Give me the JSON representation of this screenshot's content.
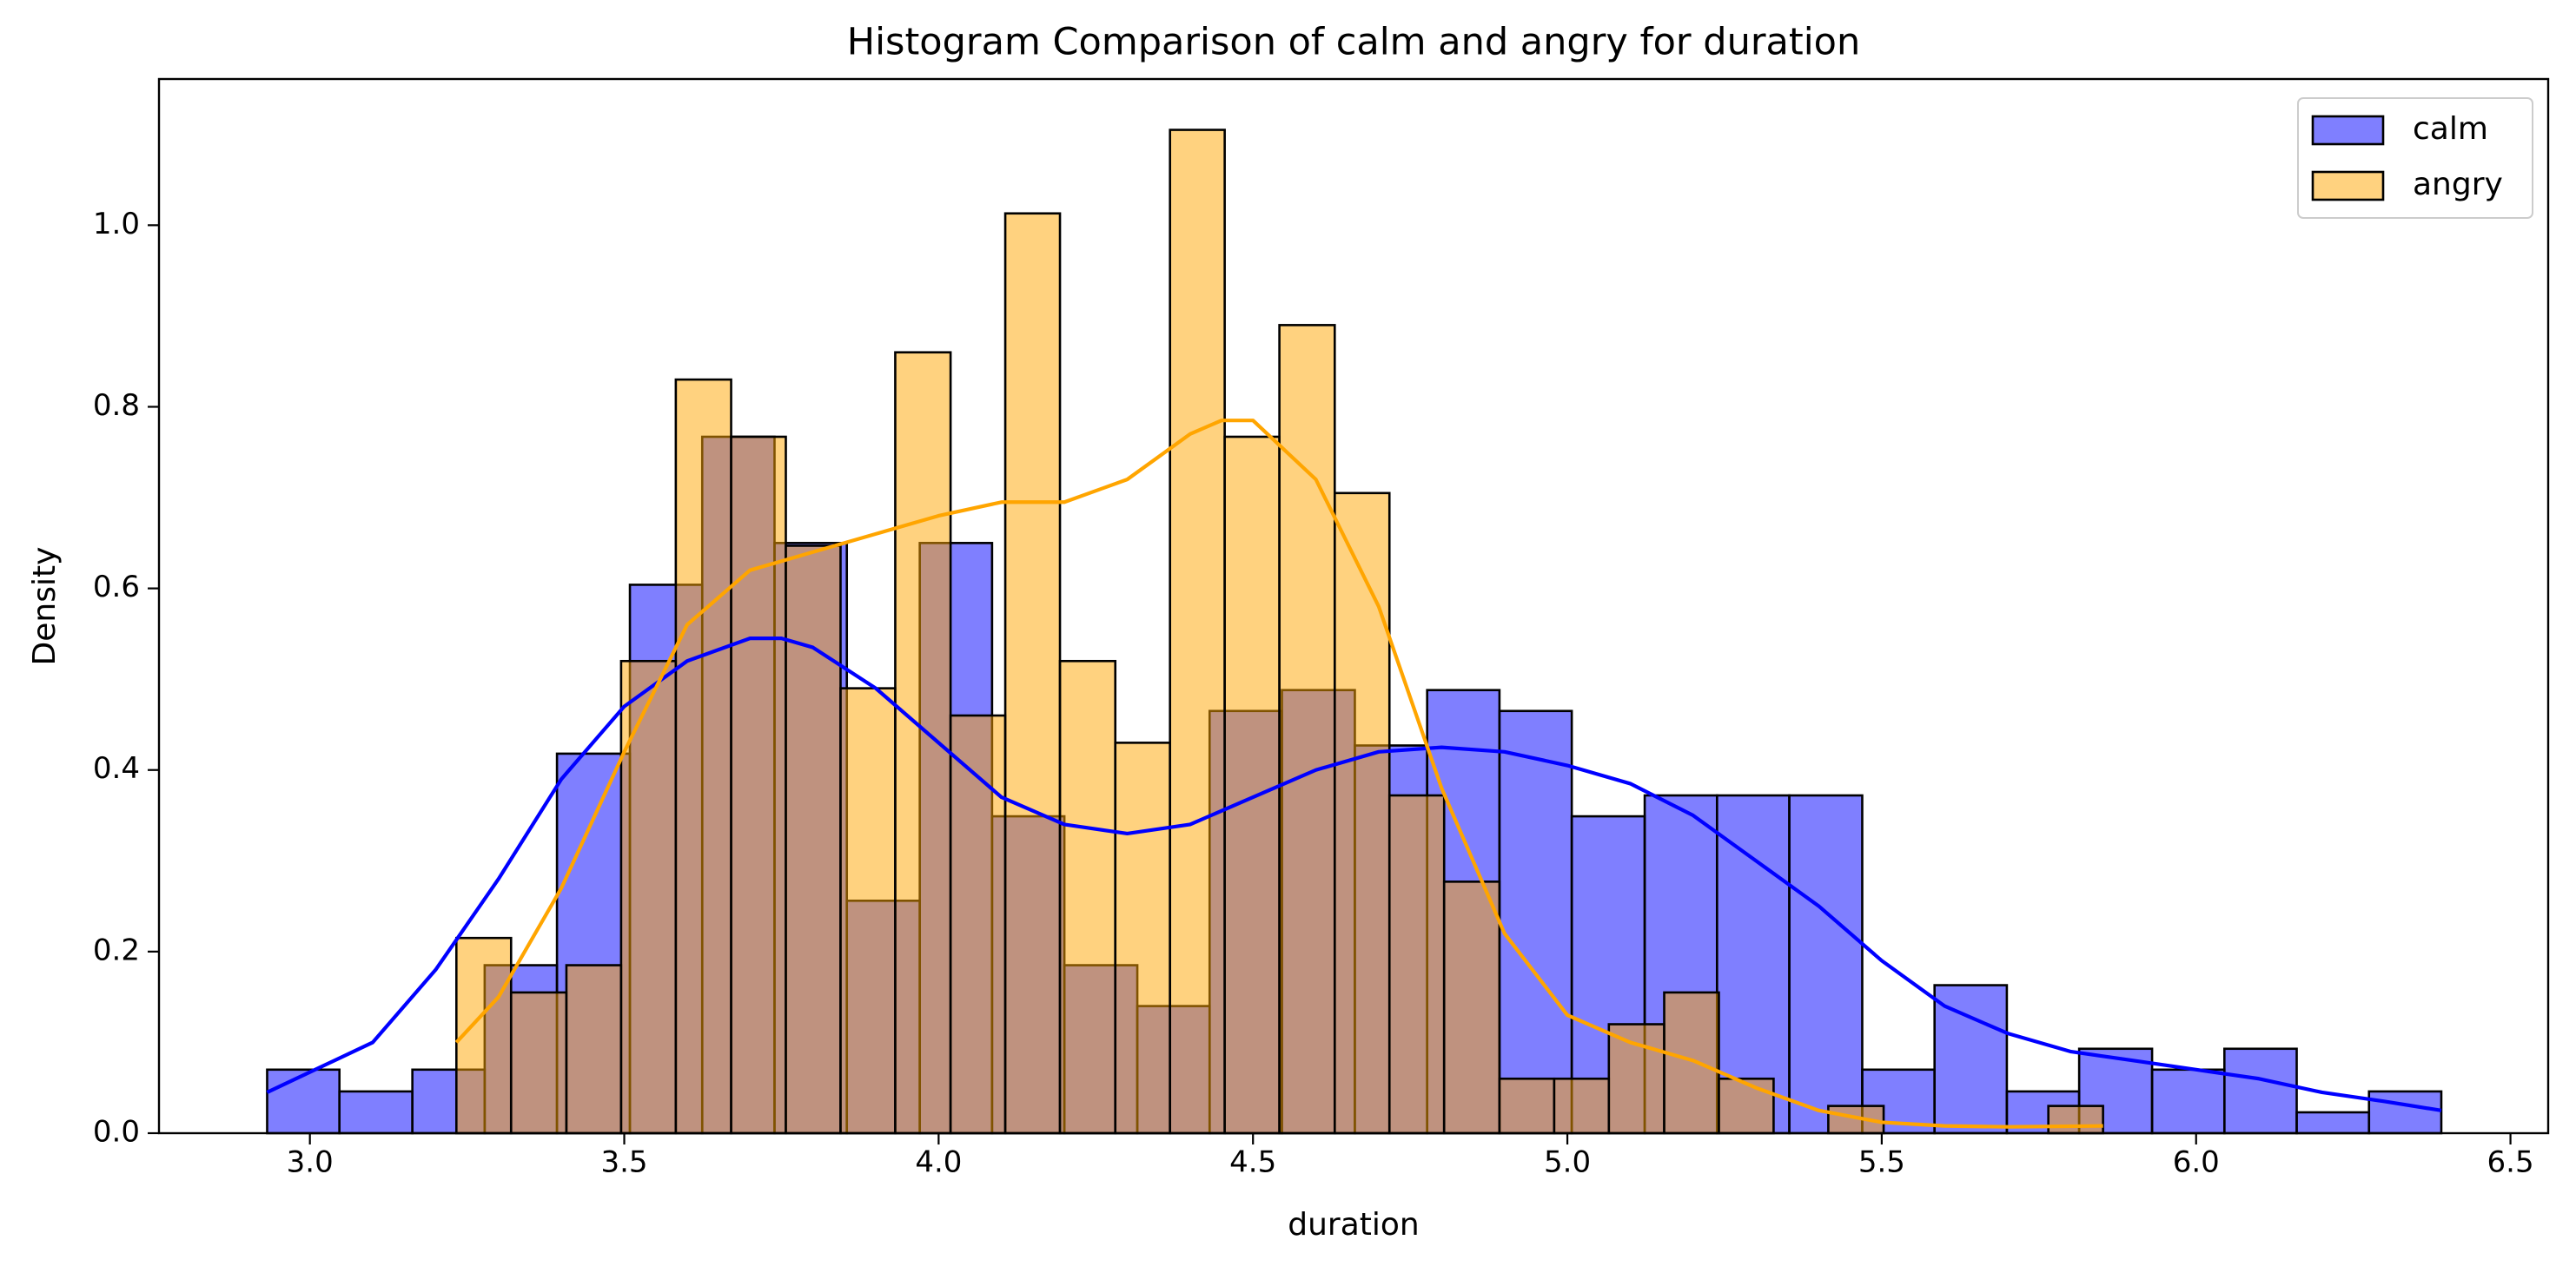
{
  "chart_data": {
    "type": "histogram",
    "title": "Histogram Comparison of calm and angry for duration",
    "x_label": "duration",
    "y_label": "Density",
    "xlim": [
      2.76,
      6.56
    ],
    "ylim": [
      0,
      1.161
    ],
    "xticks": [
      {
        "value": 3,
        "label": "3.0"
      },
      {
        "value": 3.5,
        "label": "3.5"
      },
      {
        "value": 4,
        "label": "4.0"
      },
      {
        "value": 4.5,
        "label": "4.5"
      },
      {
        "value": 5,
        "label": "5.0"
      },
      {
        "value": 5.5,
        "label": "5.5"
      },
      {
        "value": 6,
        "label": "6.0"
      },
      {
        "value": 6.5,
        "label": "6.5"
      }
    ],
    "yticks": [
      {
        "value": 0,
        "label": "0.0"
      },
      {
        "value": 0.2,
        "label": "0.2"
      },
      {
        "value": 0.4,
        "label": "0.4"
      },
      {
        "value": 0.6,
        "label": "0.6"
      },
      {
        "value": 0.8,
        "label": "0.8"
      },
      {
        "value": 1,
        "label": "1.0"
      }
    ],
    "grid": false,
    "legend": "upper right",
    "series": [
      {
        "name": "calm",
        "color": "#0000ff",
        "bins": [
          2.932,
          3.047,
          3.163,
          3.278,
          3.393,
          3.509,
          3.624,
          3.739,
          3.854,
          3.97,
          4.085,
          4.2,
          4.316,
          4.431,
          4.546,
          4.662,
          4.777,
          4.892,
          5.007,
          5.123,
          5.238,
          5.353,
          5.469,
          5.584,
          5.699,
          5.814,
          5.93,
          6.045,
          6.16,
          6.275,
          6.39
        ],
        "values": [
          0.07,
          0.046,
          0.07,
          0.185,
          0.418,
          0.604,
          0.767,
          0.65,
          0.256,
          0.65,
          0.349,
          0.185,
          0.14,
          0.465,
          0.488,
          0.427,
          0.488,
          0.465,
          0.349,
          0.372,
          0.372,
          0.372,
          0.07,
          0.163,
          0.046,
          0.093,
          0.07,
          0.093,
          0.023,
          0.046
        ],
        "kde": {
          "x": [
            2.932,
            3.1,
            3.2,
            3.3,
            3.4,
            3.5,
            3.6,
            3.7,
            3.75,
            3.8,
            3.9,
            4.0,
            4.1,
            4.2,
            4.3,
            4.4,
            4.5,
            4.6,
            4.7,
            4.8,
            4.9,
            5.0,
            5.1,
            5.2,
            5.3,
            5.4,
            5.5,
            5.6,
            5.7,
            5.8,
            5.9,
            6.0,
            6.1,
            6.2,
            6.3,
            6.39
          ],
          "y": [
            0.045,
            0.1,
            0.18,
            0.28,
            0.39,
            0.47,
            0.52,
            0.545,
            0.545,
            0.535,
            0.49,
            0.43,
            0.37,
            0.34,
            0.33,
            0.34,
            0.37,
            0.4,
            0.42,
            0.425,
            0.42,
            0.405,
            0.385,
            0.35,
            0.3,
            0.25,
            0.19,
            0.14,
            0.11,
            0.09,
            0.08,
            0.07,
            0.06,
            0.045,
            0.035,
            0.025
          ]
        }
      },
      {
        "name": "angry",
        "color": "#ffa500",
        "bins": [
          3.233,
          3.32,
          3.408,
          3.495,
          3.582,
          3.67,
          3.757,
          3.844,
          3.931,
          4.019,
          4.106,
          4.193,
          4.281,
          4.368,
          4.455,
          4.542,
          4.63,
          4.717,
          4.804,
          4.892,
          4.979,
          5.066,
          5.154,
          5.241,
          5.328,
          5.415,
          5.503,
          5.59,
          5.677,
          5.765,
          5.852
        ],
        "values": [
          0.215,
          0.155,
          0.185,
          0.52,
          0.83,
          0.767,
          0.647,
          0.49,
          0.86,
          0.46,
          1.013,
          0.52,
          0.43,
          1.105,
          0.767,
          0.89,
          0.705,
          0.372,
          0.277,
          0.06,
          0.06,
          0.12,
          0.155,
          0.06,
          0,
          0.03,
          0,
          0,
          0,
          0.03
        ],
        "kde": {
          "x": [
            3.233,
            3.3,
            3.4,
            3.5,
            3.6,
            3.7,
            3.8,
            3.9,
            4.0,
            4.1,
            4.2,
            4.3,
            4.4,
            4.45,
            4.5,
            4.6,
            4.7,
            4.8,
            4.9,
            5.0,
            5.1,
            5.2,
            5.3,
            5.4,
            5.5,
            5.6,
            5.7,
            5.852
          ],
          "y": [
            0.1,
            0.15,
            0.27,
            0.42,
            0.56,
            0.62,
            0.64,
            0.66,
            0.68,
            0.695,
            0.695,
            0.72,
            0.77,
            0.785,
            0.785,
            0.72,
            0.58,
            0.38,
            0.22,
            0.13,
            0.1,
            0.08,
            0.05,
            0.025,
            0.012,
            0.008,
            0.007,
            0.008
          ]
        }
      }
    ]
  }
}
